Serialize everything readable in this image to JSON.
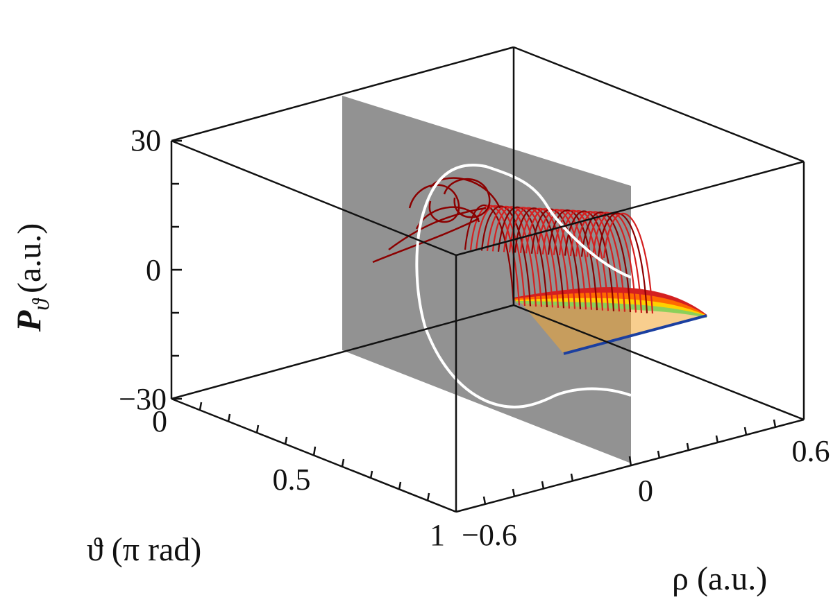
{
  "chart_data": {
    "type": "3d-line",
    "title": "",
    "axes": {
      "z": {
        "label_symbol": "P",
        "label_subscript": "ϑ",
        "label_unit": "(a.u.)",
        "range": [
          -30,
          30
        ],
        "ticks": [
          "30",
          "0",
          "−30"
        ]
      },
      "theta": {
        "label": "ϑ (π rad)",
        "range": [
          0,
          1
        ],
        "ticks": [
          "0",
          "0.5",
          "1"
        ]
      },
      "rho": {
        "label": "ρ (a.u.)",
        "range": [
          -0.6,
          0.6
        ],
        "ticks": [
          "−0.6",
          "0",
          "0.6"
        ]
      }
    },
    "plane": {
      "rho": 0,
      "color": "#8c8c8c"
    },
    "trajectory": {
      "description_colors": [
        "#8b0000",
        "#d42020",
        "#ff6a00",
        "#ffd000",
        "#8ccf5a",
        "#1b3fa0"
      ],
      "start_theta": 1.0,
      "rho_range": [
        -0.6,
        0.6
      ]
    },
    "projection_curve": {
      "color": "#ffffff"
    },
    "grid": false,
    "legend": "none"
  }
}
